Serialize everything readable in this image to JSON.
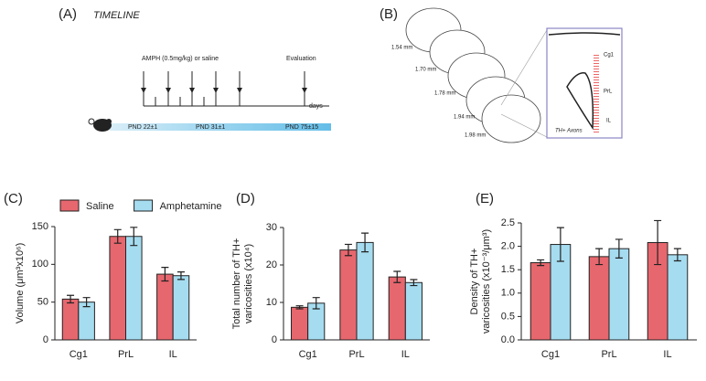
{
  "panel_a": {
    "label": "(A)",
    "title": "TIMELINE",
    "treatment": "AMPH (0.5mg/kg) or saline",
    "evaluation": "Evaluation",
    "axis": "days",
    "stages": [
      "PND 22±1",
      "PND 31±1",
      "PND 75±15"
    ]
  },
  "panel_b": {
    "label": "(B)",
    "slices": [
      "1.54 mm",
      "1.70 mm",
      "1.78 mm",
      "1.94 mm",
      "1.98 mm"
    ],
    "regions": [
      "Cg1",
      "PrL",
      "IL"
    ],
    "stain": "TH+ Axons"
  },
  "chart_data": [
    {
      "type": "bar",
      "panel": "(C)",
      "ylabel": [
        "Volume (μm³x10⁶)"
      ],
      "categories": [
        "Cg1",
        "PrL",
        "IL"
      ],
      "series": [
        {
          "name": "Saline",
          "color": "#e7676e",
          "values": [
            54,
            137,
            87
          ],
          "errors": [
            5,
            9,
            9
          ]
        },
        {
          "name": "Amphetamine",
          "color": "#a6dcf0",
          "values": [
            50,
            137,
            85
          ],
          "errors": [
            6,
            12,
            5
          ]
        }
      ],
      "ylim": [
        0,
        150
      ],
      "yticks": [
        0,
        50,
        100,
        150
      ],
      "legend": "top"
    },
    {
      "type": "bar",
      "panel": "(D)",
      "ylabel": [
        "Total number of TH+",
        "varicosities (x10⁴)"
      ],
      "categories": [
        "Cg1",
        "PrL",
        "IL"
      ],
      "series": [
        {
          "color": "#e7676e",
          "values": [
            8.7,
            24,
            16.8
          ],
          "errors": [
            0.4,
            1.5,
            1.5
          ]
        },
        {
          "color": "#a6dcf0",
          "values": [
            9.8,
            26,
            15.3
          ],
          "errors": [
            1.5,
            2.5,
            0.8
          ]
        }
      ],
      "ylim": [
        0,
        30
      ],
      "yticks": [
        0,
        10,
        20,
        30
      ]
    },
    {
      "type": "bar",
      "panel": "(E)",
      "ylabel": [
        "Density of TH+",
        "varicosities (x10⁻³/μm³)"
      ],
      "categories": [
        "Cg1",
        "PrL",
        "IL"
      ],
      "series": [
        {
          "color": "#e7676e",
          "values": [
            1.65,
            1.78,
            2.08
          ],
          "errors": [
            0.06,
            0.17,
            0.47
          ]
        },
        {
          "color": "#a6dcf0",
          "values": [
            2.04,
            1.95,
            1.82
          ],
          "errors": [
            0.36,
            0.2,
            0.13
          ]
        }
      ],
      "ylim": [
        0,
        2.5
      ],
      "yticks": [
        {
          "value": 0,
          "label": "0.0"
        },
        0.5,
        {
          "value": 1,
          "label": "1.0"
        },
        1.5,
        {
          "value": 2,
          "label": "2.0"
        },
        2.5
      ]
    }
  ]
}
